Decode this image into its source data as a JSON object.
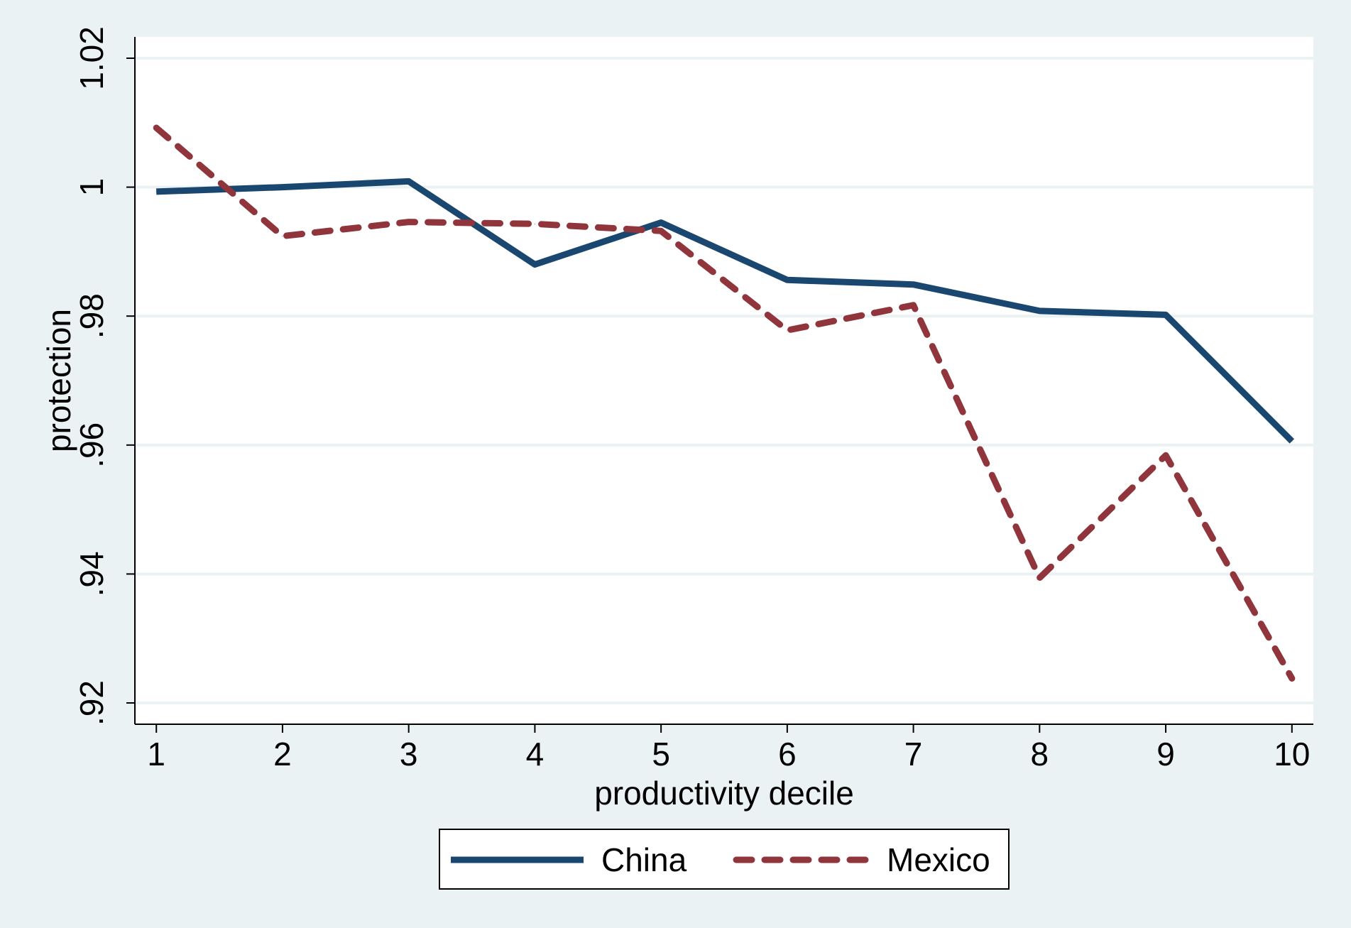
{
  "page_title": "",
  "colors": {
    "outer_background": "#eaf2f3",
    "plot_background": "#ffffff",
    "grid": "#eaf2f3",
    "axis": "#000000",
    "china": "#1a476f",
    "mexico": "#90353b"
  },
  "chart_data": {
    "type": "line",
    "title": "",
    "xlabel": "productivity decile",
    "ylabel": "protection",
    "x": [
      1,
      2,
      3,
      4,
      5,
      6,
      7,
      8,
      9,
      10
    ],
    "xticks": [
      "1",
      "2",
      "3",
      "4",
      "5",
      "6",
      "7",
      "8",
      "9",
      "10"
    ],
    "xlim": [
      0.83,
      10.17
    ],
    "yticks": [
      0.92,
      0.94,
      0.96,
      0.98,
      1.0,
      1.02
    ],
    "ytick_labels": [
      ".92",
      ".94",
      ".96",
      ".98",
      "1",
      "1.02"
    ],
    "ylim": [
      0.9167,
      1.0233
    ],
    "grid": true,
    "legend_position": "bottom",
    "series": [
      {
        "name": "China",
        "style": "solid",
        "color": "#1a476f",
        "values": [
          0.9993,
          1.0,
          1.0009,
          0.988,
          0.9945,
          0.9856,
          0.9849,
          0.9808,
          0.9802,
          0.9606
        ]
      },
      {
        "name": "Mexico",
        "style": "dashed",
        "color": "#90353b",
        "values": [
          1.0092,
          0.9924,
          0.9946,
          0.9943,
          0.9932,
          0.9778,
          0.9817,
          0.9394,
          0.9584,
          0.9238
        ]
      }
    ]
  }
}
